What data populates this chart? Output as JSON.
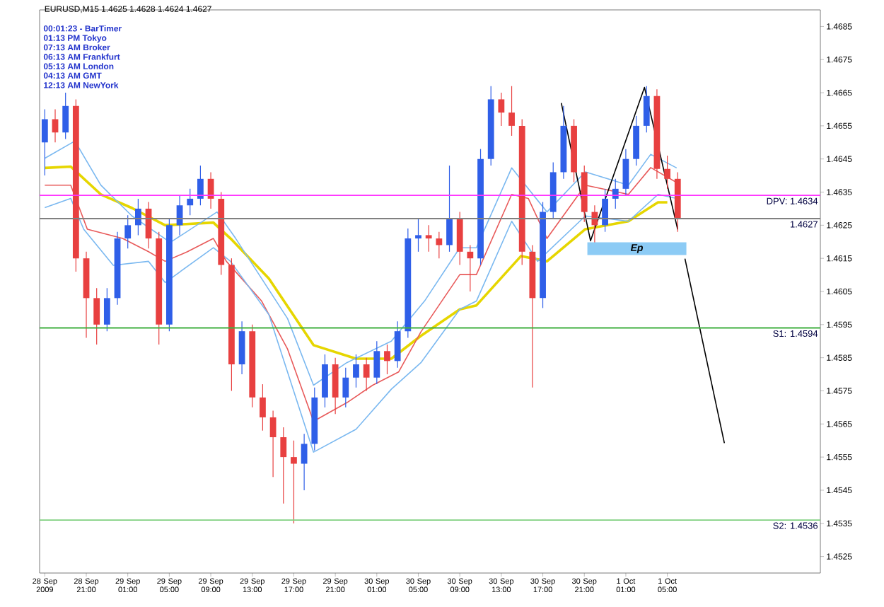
{
  "chart_data": {
    "type": "candlestick",
    "title": "EURUSD,M15  1.4625 1.4628 1.4624 1.4627",
    "x": [
      "2009-09-28T17:00",
      "2009-09-28T18:00",
      "2009-09-28T19:00",
      "2009-09-28T20:00",
      "2009-09-28T21:00",
      "2009-09-28T22:00",
      "2009-09-28T23:00",
      "2009-09-29T00:00",
      "2009-09-29T01:00",
      "2009-09-29T02:00",
      "2009-09-29T03:00",
      "2009-09-29T04:00",
      "2009-09-29T05:00",
      "2009-09-29T06:00",
      "2009-09-29T07:00",
      "2009-09-29T08:00",
      "2009-09-29T09:00",
      "2009-09-29T10:00",
      "2009-09-29T11:00",
      "2009-09-29T12:00",
      "2009-09-29T13:00",
      "2009-09-29T14:00",
      "2009-09-29T15:00",
      "2009-09-29T16:00",
      "2009-09-29T17:00",
      "2009-09-29T18:00",
      "2009-09-29T19:00",
      "2009-09-29T20:00",
      "2009-09-29T21:00",
      "2009-09-29T22:00",
      "2009-09-29T23:00",
      "2009-09-30T00:00",
      "2009-09-30T01:00",
      "2009-09-30T02:00",
      "2009-09-30T03:00",
      "2009-09-30T04:00",
      "2009-09-30T05:00",
      "2009-09-30T06:00",
      "2009-09-30T07:00",
      "2009-09-30T08:00",
      "2009-09-30T09:00",
      "2009-09-30T10:00",
      "2009-09-30T11:00",
      "2009-09-30T12:00",
      "2009-09-30T13:00",
      "2009-09-30T14:00",
      "2009-09-30T15:00",
      "2009-09-30T16:00",
      "2009-09-30T17:00",
      "2009-09-30T18:00",
      "2009-09-30T19:00",
      "2009-09-30T20:00",
      "2009-09-30T21:00",
      "2009-09-30T22:00",
      "2009-09-30T23:00",
      "2009-10-01T00:00",
      "2009-10-01T01:00",
      "2009-10-01T02:00",
      "2009-10-01T03:00",
      "2009-10-01T04:00",
      "2009-10-01T05:00",
      "2009-10-01T06:00"
    ],
    "ohlc": [
      [
        1.465,
        1.466,
        1.464,
        1.4657
      ],
      [
        1.4657,
        1.466,
        1.465,
        1.4653
      ],
      [
        1.4653,
        1.4665,
        1.4651,
        1.4661
      ],
      [
        1.4661,
        1.4663,
        1.4611,
        1.4615
      ],
      [
        1.4615,
        1.4617,
        1.4591,
        1.4603
      ],
      [
        1.4603,
        1.4606,
        1.4589,
        1.4595
      ],
      [
        1.4595,
        1.4606,
        1.4593,
        1.4603
      ],
      [
        1.4603,
        1.4623,
        1.4601,
        1.4621
      ],
      [
        1.4621,
        1.4628,
        1.4618,
        1.4625
      ],
      [
        1.4625,
        1.4633,
        1.4622,
        1.463
      ],
      [
        1.463,
        1.4632,
        1.4618,
        1.4621
      ],
      [
        1.4621,
        1.4623,
        1.4589,
        1.4595
      ],
      [
        1.4595,
        1.4627,
        1.4593,
        1.4625
      ],
      [
        1.4625,
        1.4634,
        1.4622,
        1.4631
      ],
      [
        1.4631,
        1.4636,
        1.4628,
        1.4633
      ],
      [
        1.4633,
        1.4643,
        1.4631,
        1.4639
      ],
      [
        1.4639,
        1.4641,
        1.463,
        1.4633
      ],
      [
        1.4633,
        1.4635,
        1.461,
        1.4613
      ],
      [
        1.4613,
        1.4615,
        1.4575,
        1.4583
      ],
      [
        1.4583,
        1.4596,
        1.458,
        1.4593
      ],
      [
        1.4593,
        1.4595,
        1.457,
        1.4573
      ],
      [
        1.4573,
        1.4577,
        1.4563,
        1.4567
      ],
      [
        1.4567,
        1.4569,
        1.4549,
        1.4561
      ],
      [
        1.4561,
        1.4564,
        1.4541,
        1.4555
      ],
      [
        1.4555,
        1.456,
        1.4535,
        1.4553
      ],
      [
        1.4553,
        1.4562,
        1.4545,
        1.4559
      ],
      [
        1.4559,
        1.4576,
        1.4557,
        1.4573
      ],
      [
        1.4573,
        1.4586,
        1.457,
        1.4583
      ],
      [
        1.4583,
        1.4585,
        1.4568,
        1.4573
      ],
      [
        1.4573,
        1.4582,
        1.457,
        1.4579
      ],
      [
        1.4579,
        1.4586,
        1.4576,
        1.4583
      ],
      [
        1.4583,
        1.4585,
        1.4575,
        1.4579
      ],
      [
        1.4579,
        1.459,
        1.4577,
        1.4587
      ],
      [
        1.4587,
        1.4589,
        1.458,
        1.4584
      ],
      [
        1.4584,
        1.4596,
        1.4582,
        1.4593
      ],
      [
        1.4593,
        1.4624,
        1.4591,
        1.4621
      ],
      [
        1.4621,
        1.4627,
        1.4617,
        1.4622
      ],
      [
        1.4622,
        1.4625,
        1.4617,
        1.4621
      ],
      [
        1.4621,
        1.4623,
        1.4615,
        1.4619
      ],
      [
        1.4619,
        1.4643,
        1.4617,
        1.4627
      ],
      [
        1.4627,
        1.4629,
        1.4613,
        1.4617
      ],
      [
        1.4617,
        1.4619,
        1.4605,
        1.4615
      ],
      [
        1.4615,
        1.4648,
        1.4613,
        1.4645
      ],
      [
        1.4645,
        1.4667,
        1.4643,
        1.4663
      ],
      [
        1.4663,
        1.4665,
        1.4655,
        1.4659
      ],
      [
        1.4659,
        1.4667,
        1.4652,
        1.4655
      ],
      [
        1.4655,
        1.4657,
        1.4613,
        1.4617
      ],
      [
        1.4617,
        1.4619,
        1.4576,
        1.4603
      ],
      [
        1.4603,
        1.4632,
        1.46,
        1.4629
      ],
      [
        1.4629,
        1.4644,
        1.4627,
        1.4641
      ],
      [
        1.4641,
        1.4661,
        1.4639,
        1.4655
      ],
      [
        1.4655,
        1.4657,
        1.4638,
        1.4641
      ],
      [
        1.4641,
        1.4643,
        1.4626,
        1.4629
      ],
      [
        1.4629,
        1.4631,
        1.4619,
        1.4625
      ],
      [
        1.4625,
        1.4636,
        1.4623,
        1.4633
      ],
      [
        1.4633,
        1.4639,
        1.463,
        1.4636
      ],
      [
        1.4636,
        1.4648,
        1.4634,
        1.4645
      ],
      [
        1.4645,
        1.4658,
        1.4643,
        1.4655
      ],
      [
        1.4655,
        1.4667,
        1.4653,
        1.4664
      ],
      [
        1.4664,
        1.4666,
        1.4639,
        1.4642
      ],
      [
        1.4642,
        1.4646,
        1.4636,
        1.4639
      ],
      [
        1.4639,
        1.4641,
        1.4623,
        1.4627
      ]
    ],
    "colors": [
      "#2f5fe8",
      "#e84040",
      "#2f5fe8",
      "#e84040",
      "#e84040",
      "#e84040",
      "#2f5fe8",
      "#2f5fe8",
      "#2f5fe8",
      "#2f5fe8",
      "#e84040",
      "#e84040",
      "#2f5fe8",
      "#2f5fe8",
      "#2f5fe8",
      "#2f5fe8",
      "#e84040",
      "#e84040",
      "#e84040",
      "#2f5fe8",
      "#e84040",
      "#e84040",
      "#e84040",
      "#e84040",
      "#e84040",
      "#2f5fe8",
      "#2f5fe8",
      "#2f5fe8",
      "#e84040",
      "#2f5fe8",
      "#2f5fe8",
      "#e84040",
      "#2f5fe8",
      "#e84040",
      "#2f5fe8",
      "#2f5fe8",
      "#2f5fe8",
      "#e84040",
      "#e84040",
      "#2f5fe8",
      "#e84040",
      "#e84040",
      "#2f5fe8",
      "#2f5fe8",
      "#e84040",
      "#e84040",
      "#e84040",
      "#e84040",
      "#2f5fe8",
      "#2f5fe8",
      "#2f5fe8",
      "#e84040",
      "#e84040",
      "#e84040",
      "#2f5fe8",
      "#2f5fe8",
      "#2f5fe8",
      "#2f5fe8",
      "#2f5fe8",
      "#e84040",
      "#e84040",
      "#e84040"
    ],
    "series": [
      {
        "type": "line",
        "color": "#e6d600",
        "x": [
          "2009-09-28T17:00",
          "2009-09-28T19:30",
          "2009-09-28T22:24",
          "2009-09-29T01:24",
          "2009-09-29T04:36",
          "2009-09-29T09:15",
          "2009-09-29T10:54",
          "2009-09-29T14:36",
          "2009-09-29T18:54",
          "2009-09-29T23:00",
          "2009-09-30T02:24",
          "2009-09-30T05:15",
          "2009-09-30T09:00",
          "2009-09-30T10:36",
          "2009-09-30T14:54",
          "2009-09-30T17:24",
          "2009-09-30T21:06",
          "2009-10-01T01:15",
          "2009-10-01T04:06",
          "2009-10-01T05:00"
        ],
        "values": [
          1.46423,
          1.46427,
          1.46343,
          1.46302,
          1.4625,
          1.46258,
          1.4621,
          1.46089,
          1.45888,
          1.45847,
          1.45847,
          1.45916,
          1.45996,
          1.46008,
          1.46157,
          1.46141,
          1.46238,
          1.46262,
          1.46319,
          1.46319
        ]
      },
      {
        "type": "line",
        "color": "#e85a5a",
        "x": [
          "2009-09-28T17:00",
          "2009-09-28T19:30",
          "2009-09-28T21:06",
          "2009-09-29T00:30",
          "2009-09-29T03:00",
          "2009-09-29T04:36",
          "2009-09-29T06:45",
          "2009-09-29T09:15",
          "2009-09-29T10:30",
          "2009-09-29T13:54",
          "2009-09-29T16:24",
          "2009-09-29T18:54",
          "2009-09-29T22:06",
          "2009-09-30T00:36",
          "2009-09-30T03:06",
          "2009-09-30T05:15",
          "2009-09-30T09:00",
          "2009-09-30T10:36",
          "2009-09-30T14:00",
          "2009-09-30T15:36",
          "2009-09-30T17:24",
          "2009-09-30T21:06",
          "2009-10-01T01:15",
          "2009-10-01T03:24",
          "2009-10-01T05:54"
        ],
        "values": [
          1.46371,
          1.46371,
          1.46238,
          1.4621,
          1.4617,
          1.46141,
          1.4617,
          1.4621,
          1.46141,
          1.46021,
          1.45876,
          1.45658,
          1.45714,
          1.45767,
          1.45807,
          1.45928,
          1.46101,
          1.46101,
          1.46343,
          1.46331,
          1.4621,
          1.46371,
          1.46343,
          1.46424,
          1.46379
        ]
      },
      {
        "type": "line",
        "color": "#7ab8f0",
        "x": [
          "2009-09-28T17:00",
          "2009-09-28T19:54",
          "2009-09-28T22:24",
          "2009-09-29T01:24",
          "2009-09-29T05:06",
          "2009-09-29T09:36",
          "2009-09-29T11:24",
          "2009-09-29T16:24",
          "2009-09-29T18:54",
          "2009-09-29T22:06",
          "2009-09-30T02:24",
          "2009-09-30T05:36",
          "2009-09-30T09:00",
          "2009-09-30T10:36",
          "2009-09-30T14:00",
          "2009-09-30T17:24",
          "2009-09-30T21:06",
          "2009-10-01T01:15",
          "2009-10-01T03:24",
          "2009-10-01T05:54"
        ],
        "values": [
          1.46452,
          1.46504,
          1.46371,
          1.46278,
          1.46198,
          1.4629,
          1.4621,
          1.45968,
          1.45767,
          1.45835,
          1.459,
          1.46021,
          1.46182,
          1.46182,
          1.46423,
          1.4629,
          1.46411,
          1.46371,
          1.46464,
          1.46423
        ]
      },
      {
        "type": "line",
        "color": "#7ab8f0",
        "x": [
          "2009-09-28T17:00",
          "2009-09-28T19:30",
          "2009-09-28T20:45",
          "2009-09-28T23:36",
          "2009-09-29T03:00",
          "2009-09-29T04:36",
          "2009-09-29T09:15",
          "2009-09-29T10:54",
          "2009-09-29T14:36",
          "2009-09-29T18:54",
          "2009-09-29T23:00",
          "2009-09-30T02:24",
          "2009-09-30T05:15",
          "2009-09-30T09:00",
          "2009-09-30T10:36",
          "2009-09-30T14:00",
          "2009-09-30T16:30",
          "2009-09-30T21:06",
          "2009-10-01T01:15",
          "2009-10-01T04:06",
          "2009-10-01T05:54"
        ],
        "values": [
          1.46303,
          1.46331,
          1.46238,
          1.46129,
          1.46141,
          1.46077,
          1.46182,
          1.46141,
          1.4598,
          1.45565,
          1.45634,
          1.45755,
          1.45835,
          1.45996,
          1.46021,
          1.46262,
          1.46141,
          1.46278,
          1.46262,
          1.46343,
          1.46331
        ]
      },
      {
        "type": "line",
        "color": "#000000",
        "x": [
          "2009-09-30T18:47",
          "2009-09-30T21:36",
          "2009-10-01T02:48",
          "2009-10-01T06:00"
        ],
        "values": [
          1.46619,
          1.46203,
          1.46666,
          1.46237
        ]
      },
      {
        "type": "line",
        "color": "#000000",
        "x": [
          "2009-10-01T06:42",
          "2009-10-01T10:30"
        ],
        "values": [
          1.46149,
          1.45592
        ]
      }
    ],
    "xlim": [
      "2009-09-28T16:30",
      "2009-10-01T19:45"
    ],
    "ylim": [
      1.452,
      1.469
    ],
    "xticks": [
      {
        "value": "2009-09-28T17:00",
        "label": "28 Sep 2009"
      },
      {
        "value": "2009-09-28T21:00",
        "label": "28 Sep 21:00"
      },
      {
        "value": "2009-09-29T01:00",
        "label": "29 Sep 01:00"
      },
      {
        "value": "2009-09-29T05:00",
        "label": "29 Sep 05:00"
      },
      {
        "value": "2009-09-29T09:00",
        "label": "29 Sep 09:00"
      },
      {
        "value": "2009-09-29T13:00",
        "label": "29 Sep 13:00"
      },
      {
        "value": "2009-09-29T17:00",
        "label": "29 Sep 17:00"
      },
      {
        "value": "2009-09-29T21:00",
        "label": "29 Sep 21:00"
      },
      {
        "value": "2009-09-30T01:00",
        "label": "30 Sep 01:00"
      },
      {
        "value": "2009-09-30T05:00",
        "label": "30 Sep 05:00"
      },
      {
        "value": "2009-09-30T09:00",
        "label": "30 Sep 09:00"
      },
      {
        "value": "2009-09-30T13:00",
        "label": "30 Sep 13:00"
      },
      {
        "value": "2009-09-30T17:00",
        "label": "30 Sep 17:00"
      },
      {
        "value": "2009-09-30T21:00",
        "label": "30 Sep 21:00"
      },
      {
        "value": "2009-10-01T01:00",
        "label": "1 Oct 01:00"
      },
      {
        "value": "2009-10-01T05:00",
        "label": "1 Oct 05:00"
      }
    ],
    "yticks": [
      1.4525,
      1.4535,
      1.4545,
      1.4555,
      1.4565,
      1.4575,
      1.4585,
      1.4595,
      1.4605,
      1.4615,
      1.4625,
      1.4635,
      1.4645,
      1.4655,
      1.4665,
      1.4675,
      1.4685
    ],
    "ref_lines": [
      {
        "axis": "y",
        "value": 1.4634,
        "label": "DPV: 1.4634",
        "color": "#ff33ff"
      },
      {
        "axis": "y",
        "value": 1.4627,
        "label": "1.4627",
        "color": "#808080"
      },
      {
        "axis": "y",
        "value": 1.4594,
        "label": "S1: 1.4594",
        "color": "#40b040"
      },
      {
        "axis": "y",
        "value": 1.4536,
        "label": "S2: 1.4536",
        "color": "#80d080"
      }
    ],
    "annotations": [
      "00:01:23 - BarTimer",
      "01:13 PM Tokyo",
      "07:13 AM Broker",
      "06:13 AM Frankfurt",
      "05:13 AM London",
      "04:13 AM GMT",
      "12:13 AM NewYork",
      "Ep"
    ]
  }
}
